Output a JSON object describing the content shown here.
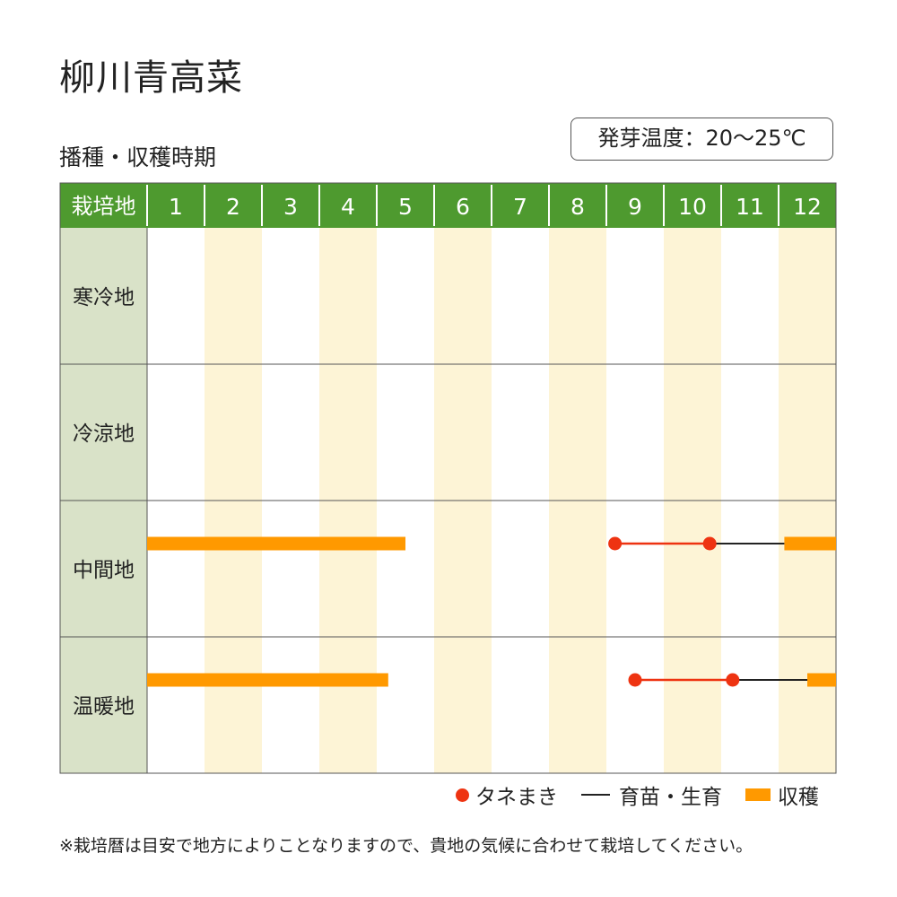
{
  "title": "柳川青高菜",
  "subtitle": "播種・収穫時期",
  "germination": "発芽温度：20～25℃",
  "note": "※栽培暦は目安で地方によりことなりますので、貴地の気候に合わせて栽培してください。",
  "colors": {
    "header_green": "#4e9a2f",
    "region_bg": "#d9e2c8",
    "stripe": "#fdf4d6",
    "harvest": "#ff9900",
    "sowing_dot": "#ee3311",
    "seedling_line": "#222222",
    "grid_line": "#555555"
  },
  "legend": {
    "sowing": "タネまき",
    "growing": "育苗・生育",
    "harvest": "収穫"
  },
  "chart_data": {
    "type": "table",
    "header_label": "栽培地",
    "months": [
      "1",
      "2",
      "3",
      "4",
      "5",
      "6",
      "7",
      "8",
      "9",
      "10",
      "11",
      "12"
    ],
    "regions": [
      {
        "name": "寒冷地",
        "harvest": [],
        "sowing": [],
        "growing": []
      },
      {
        "name": "冷涼地",
        "harvest": [],
        "sowing": [],
        "growing": []
      },
      {
        "name": "中間地",
        "harvest": [
          [
            1.0,
            5.5
          ],
          [
            12.1,
            13.0
          ]
        ],
        "sowing": [
          [
            9.15,
            10.8
          ]
        ],
        "growing": [
          [
            10.8,
            12.1
          ]
        ]
      },
      {
        "name": "温暖地",
        "harvest": [
          [
            1.0,
            5.2
          ],
          [
            12.5,
            13.0
          ]
        ],
        "sowing": [
          [
            9.5,
            11.2
          ]
        ],
        "growing": [
          [
            11.2,
            12.5
          ]
        ]
      }
    ]
  }
}
